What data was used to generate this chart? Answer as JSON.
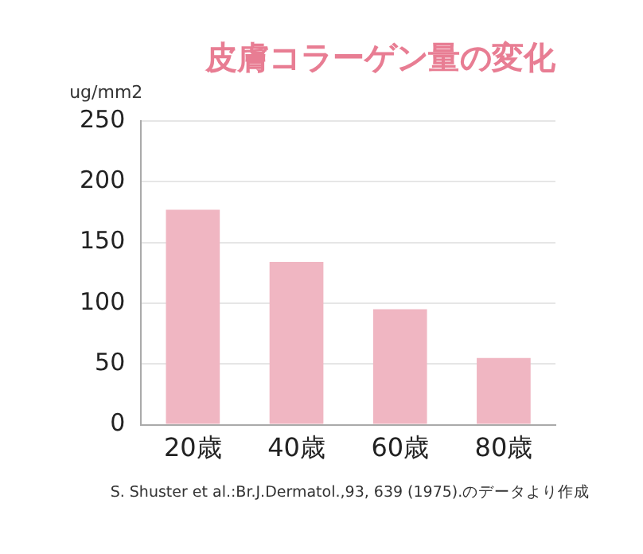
{
  "chart_data": {
    "type": "bar",
    "title": "皮膚コラーゲン量の変化",
    "ylabel": "ug/mm2",
    "categories": [
      "20歳",
      "40歳",
      "60歳",
      "80歳"
    ],
    "values": [
      177,
      134,
      95,
      55
    ],
    "color": "#f0b6c2",
    "ylim": [
      0,
      250
    ],
    "yticks": [
      0,
      50,
      100,
      150,
      200,
      250
    ],
    "grid": "y",
    "annotations": [
      "S. Shuster et al.:Br.J.Dermatol.,93, 639 (1975).のデータより作成"
    ]
  }
}
